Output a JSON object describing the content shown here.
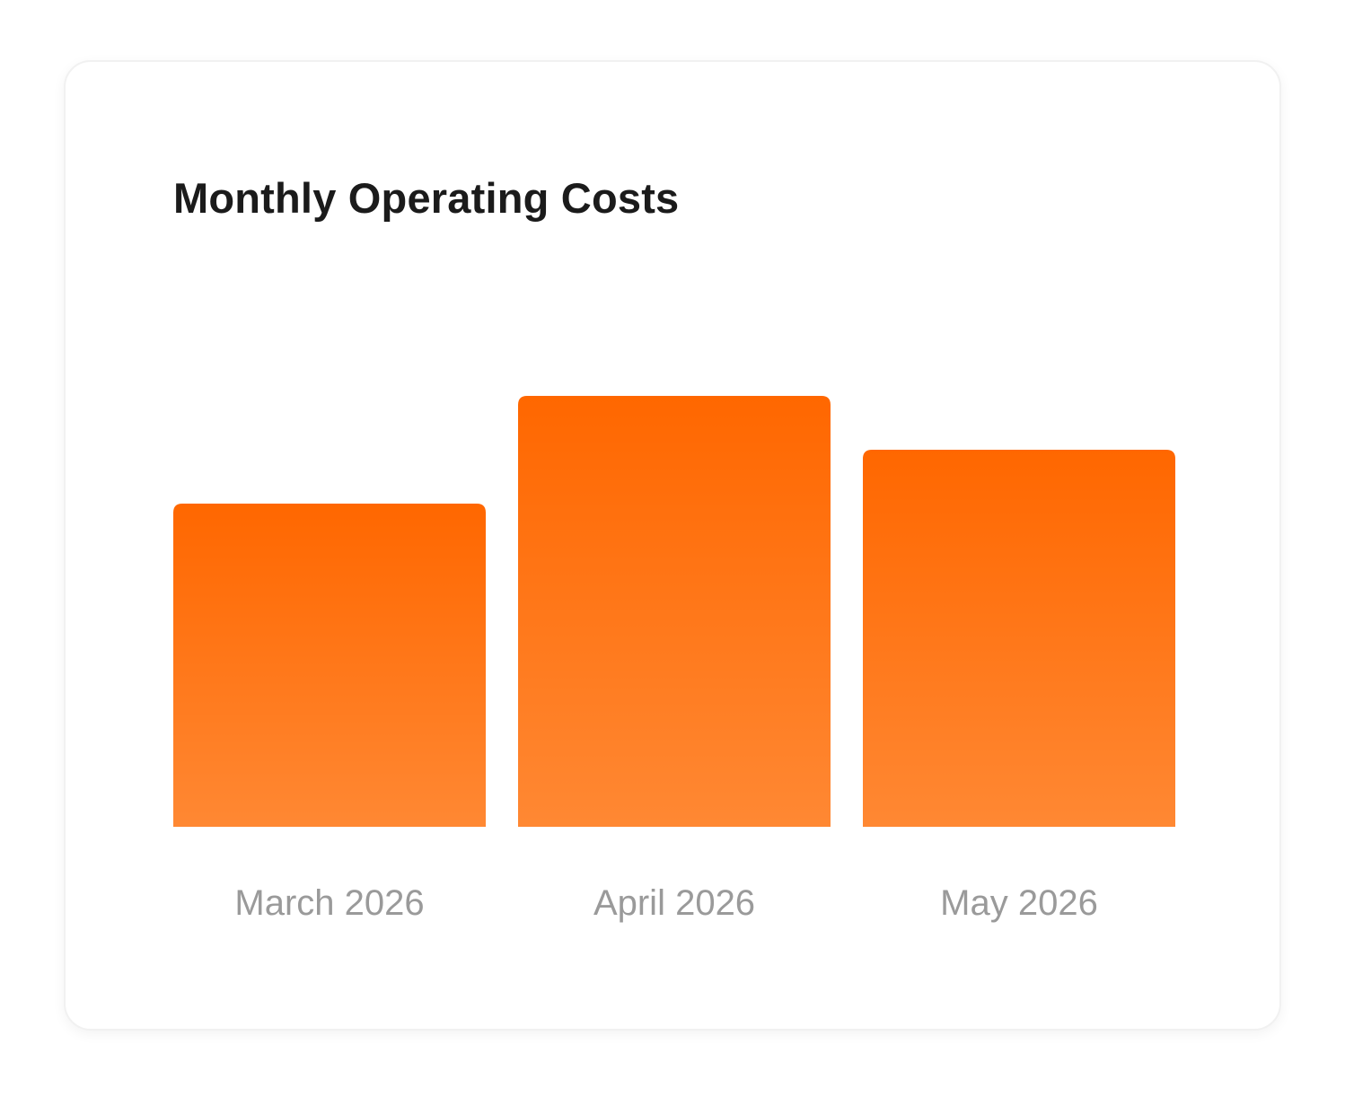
{
  "card": {
    "title": "Monthly Operating Costs"
  },
  "colors": {
    "bar_top": "#ff6700",
    "bar_bottom": "#ff8833",
    "label": "#9a9a9a",
    "title": "#1b1b1b"
  },
  "chart_data": {
    "type": "bar",
    "title": "Monthly Operating Costs",
    "categories": [
      "March 2026",
      "April 2026",
      "May 2026"
    ],
    "values": [
      3.0,
      4.0,
      3.5
    ],
    "xlabel": "",
    "ylabel": "",
    "ylim": [
      0,
      5.4
    ],
    "grid": false,
    "legend": "none"
  }
}
